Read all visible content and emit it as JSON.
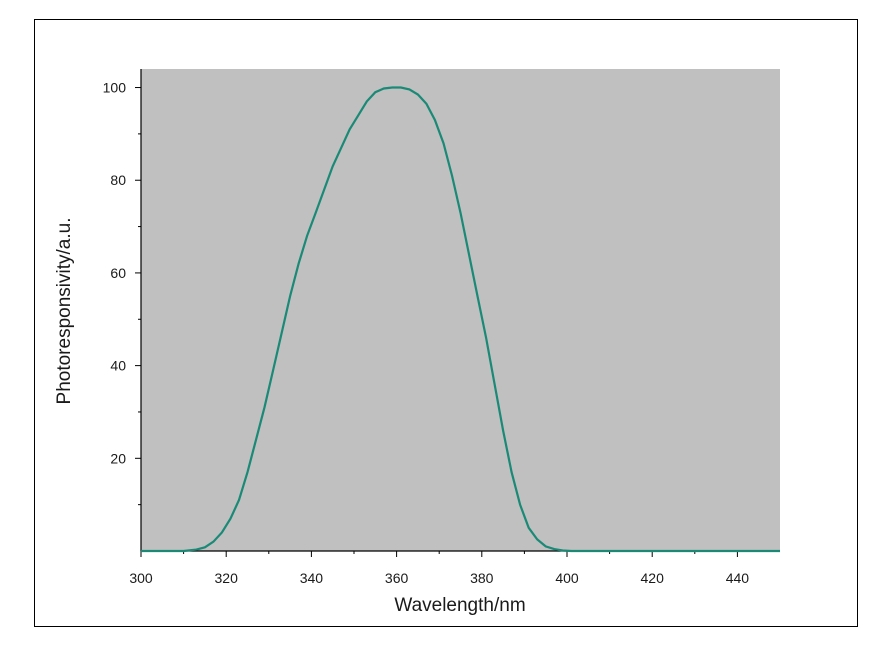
{
  "chart_data": {
    "type": "line",
    "xlabel": "Wavelength/nm",
    "ylabel": "Photoresponsivity/a.u.",
    "xlim": [
      300,
      450
    ],
    "ylim": [
      0,
      104
    ],
    "x_ticks": [
      300,
      320,
      340,
      360,
      380,
      400,
      420,
      440
    ],
    "x_tick_labels": [
      "300",
      "320",
      "340",
      "360",
      "380",
      "400",
      "420",
      "440"
    ],
    "y_ticks": [
      20,
      40,
      60,
      80,
      100
    ],
    "y_tick_labels": [
      "20",
      "40",
      "60",
      "80",
      "100"
    ],
    "grid": false,
    "plot_background": "#c0c0c0",
    "line_color": "#1a8a76",
    "series": [
      {
        "x": [
          300,
          310,
          313,
          315,
          317,
          319,
          321,
          323,
          325,
          327,
          329,
          331,
          333,
          335,
          337,
          339,
          341,
          343,
          345,
          347,
          349,
          351,
          353,
          355,
          357,
          359,
          361,
          363,
          365,
          367,
          369,
          371,
          373,
          375,
          377,
          379,
          381,
          383,
          385,
          387,
          389,
          391,
          393,
          395,
          397,
          399,
          401,
          403,
          405,
          410,
          420,
          450
        ],
        "y": [
          0,
          0,
          0.3,
          0.8,
          2,
          4,
          7,
          11,
          17,
          24,
          31,
          39,
          47,
          55,
          62,
          68,
          73,
          78,
          83,
          87,
          91,
          94,
          97,
          99,
          99.8,
          100,
          100,
          99.6,
          98.5,
          96.5,
          93,
          88,
          81,
          73,
          64,
          55,
          46,
          36,
          26,
          17,
          10,
          5,
          2.5,
          1,
          0.4,
          0.1,
          0,
          0,
          0,
          0,
          0,
          0
        ]
      }
    ]
  }
}
